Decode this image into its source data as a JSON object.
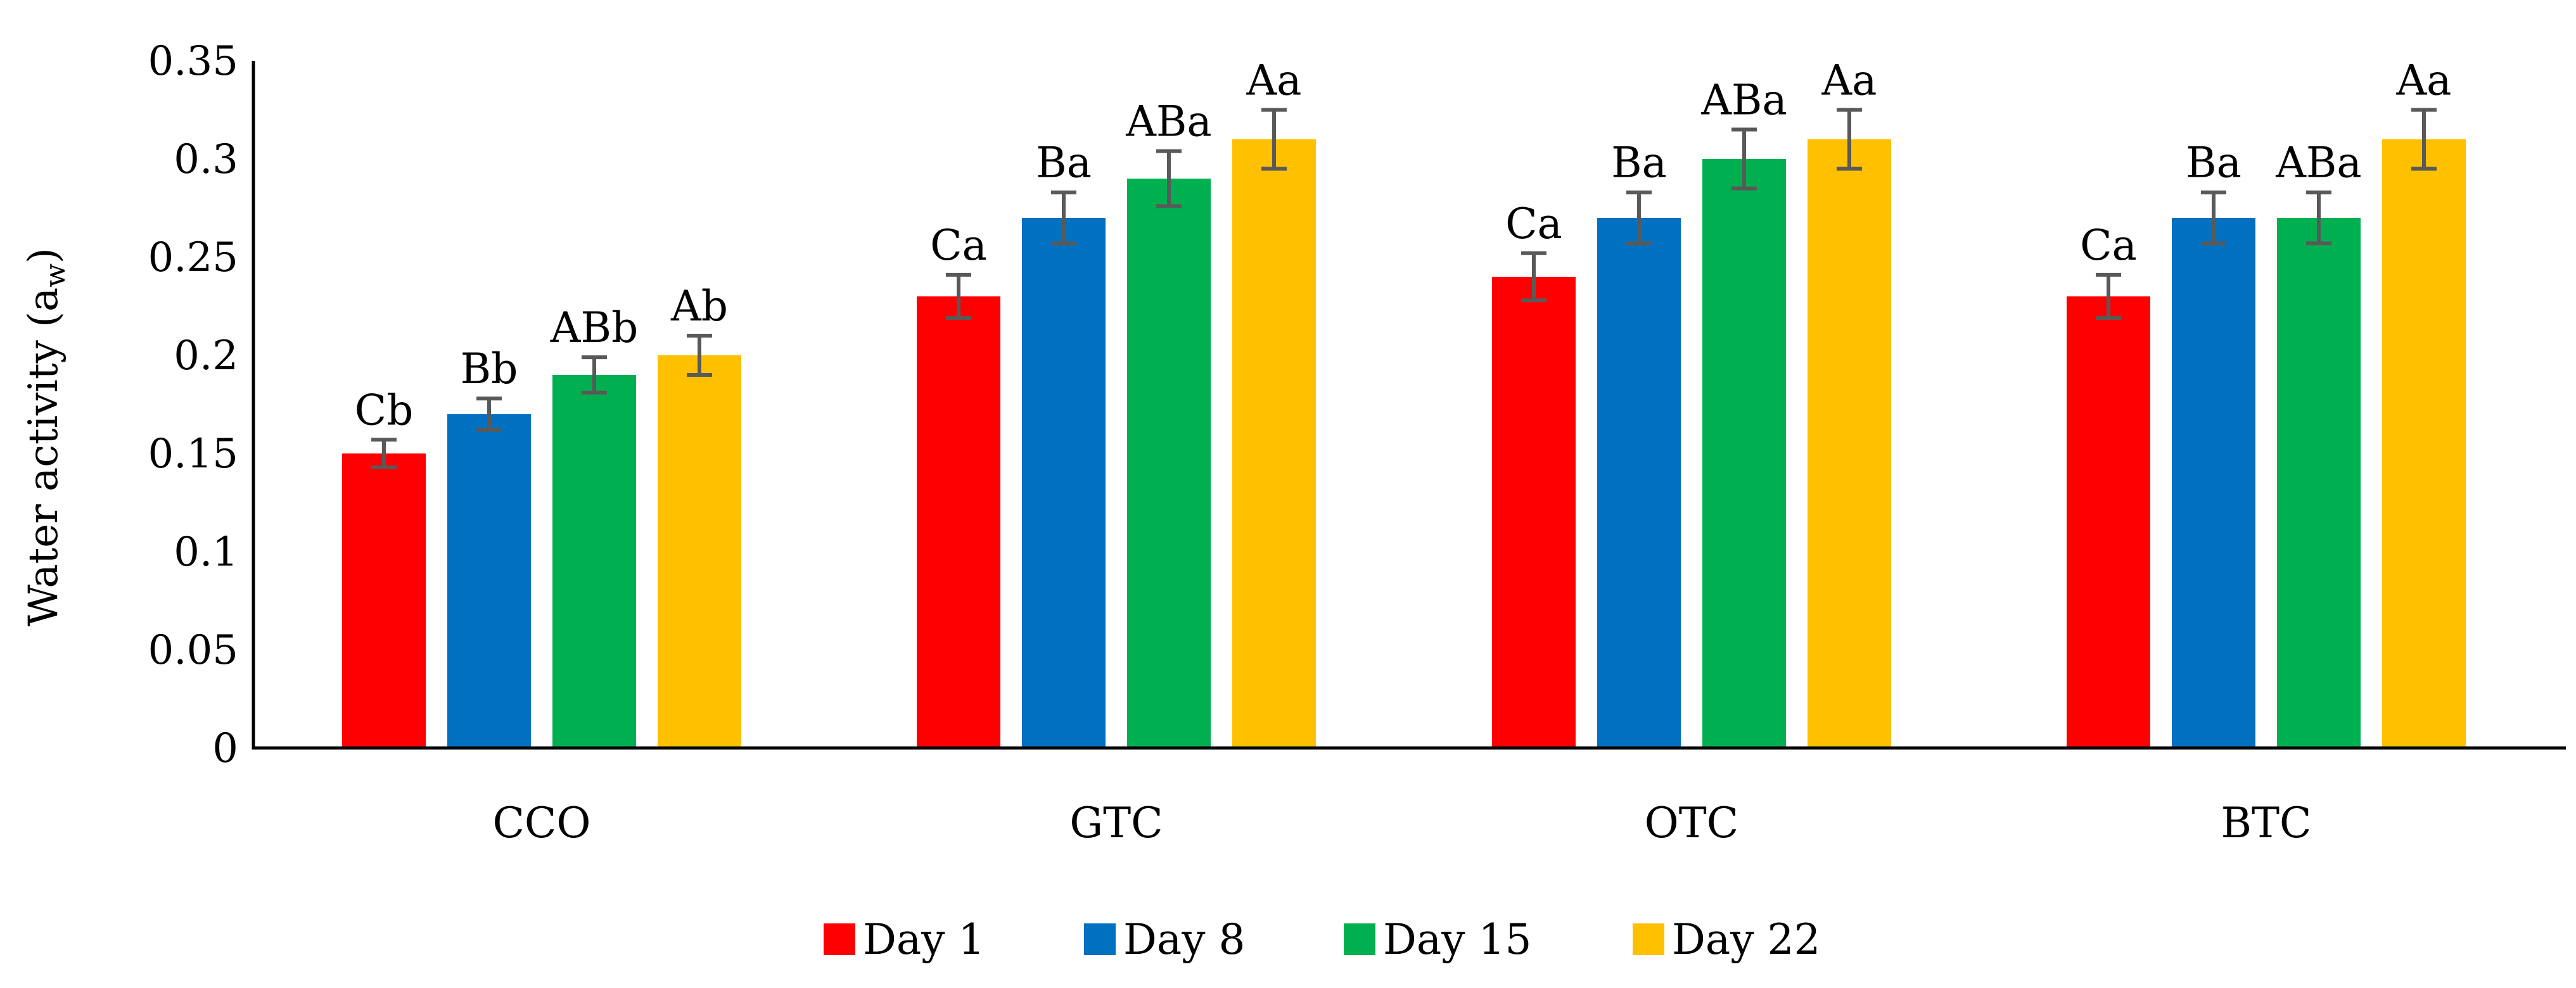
{
  "chart_data": {
    "type": "bar",
    "title": "",
    "xlabel": "",
    "ylabel": "Water activity (a",
    "ylabel_sub": "w",
    "ylabel_close": ")",
    "ylim": [
      0,
      0.35
    ],
    "yticks": [
      "0",
      "0.05",
      "0.1",
      "0.15",
      "0.2",
      "0.25",
      "0.3",
      "0.35"
    ],
    "grid": false,
    "legend_position": "bottom",
    "categories": [
      "CCO",
      "GTC",
      "OTC",
      "BTC"
    ],
    "series": [
      {
        "name": "Day 1",
        "color": "#ff0000",
        "values": [
          0.15,
          0.23,
          0.24,
          0.23
        ],
        "errors": [
          0.007,
          0.011,
          0.012,
          0.011
        ],
        "labels": [
          "Cb",
          "Ca",
          "Ca",
          "Ca"
        ]
      },
      {
        "name": "Day 8",
        "color": "#0070c0",
        "values": [
          0.17,
          0.27,
          0.27,
          0.27
        ],
        "errors": [
          0.008,
          0.013,
          0.013,
          0.013
        ],
        "labels": [
          "Bb",
          "Ba",
          "Ba",
          "Ba"
        ]
      },
      {
        "name": "Day 15",
        "color": "#00b050",
        "values": [
          0.19,
          0.29,
          0.3,
          0.27
        ],
        "errors": [
          0.009,
          0.014,
          0.015,
          0.013
        ],
        "labels": [
          "ABb",
          "ABa",
          "ABa",
          "ABa"
        ]
      },
      {
        "name": "Day 22",
        "color": "#ffc000",
        "values": [
          0.2,
          0.31,
          0.31,
          0.31
        ],
        "errors": [
          0.01,
          0.015,
          0.015,
          0.015
        ],
        "labels": [
          "Ab",
          "Aa",
          "Aa",
          "Aa"
        ]
      }
    ],
    "error_bar_color": "#595959",
    "axis_color": "#000000"
  }
}
